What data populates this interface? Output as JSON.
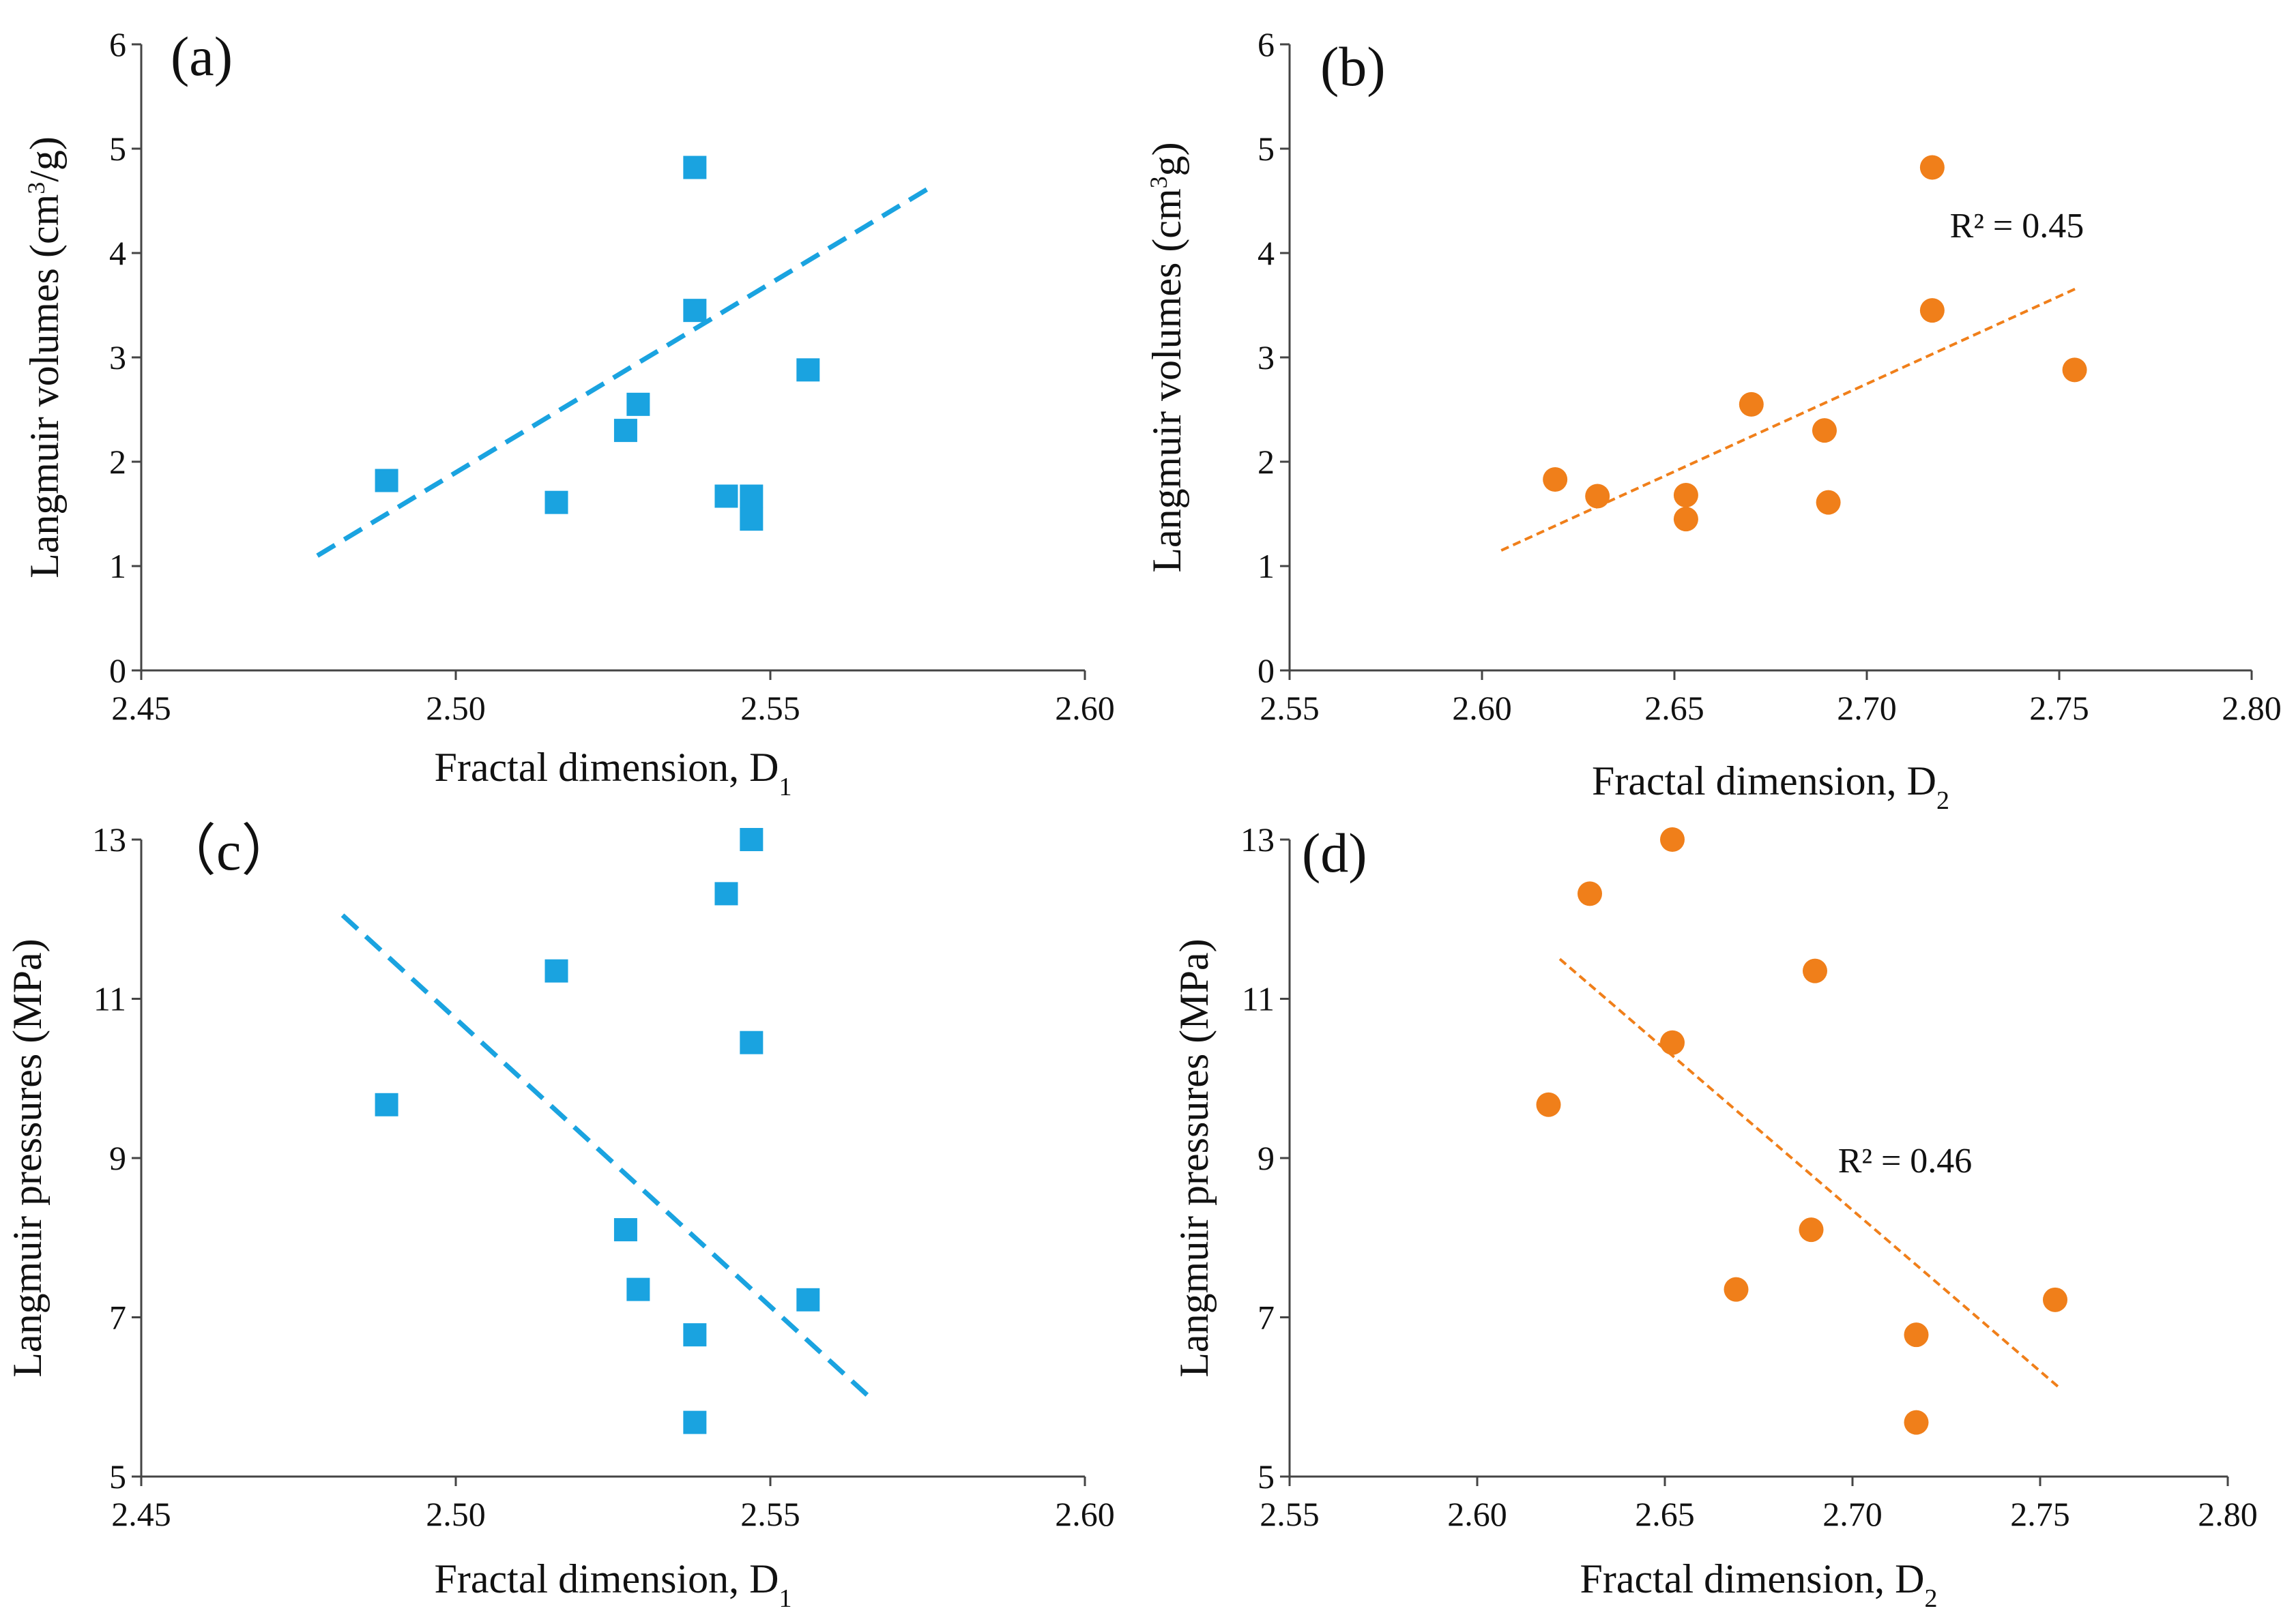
{
  "colors": {
    "blue": "#1aa3e0",
    "orange": "#f07f1a",
    "axis": "#444444",
    "text": "#111111"
  },
  "chart_data": [
    {
      "id": "a",
      "type": "scatter",
      "panel_label": "(a)",
      "xlabel": "Fractal dimension, D",
      "xlabel_sub": "1",
      "ylabel_pre": "Langmuir volumes (cm",
      "ylabel_sup": "3",
      "ylabel_post": "/g)",
      "xlim": [
        2.45,
        2.6
      ],
      "ylim": [
        0,
        6
      ],
      "xticks": [
        "2.45",
        "2.50",
        "2.55",
        "2.60"
      ],
      "yticks": [
        "0",
        "1",
        "2",
        "3",
        "4",
        "5",
        "6"
      ],
      "marker": "square",
      "color": "blue",
      "trend_style": "dashed-thick",
      "trendline": {
        "x": [
          2.478,
          2.576
        ],
        "y": [
          1.1,
          4.65
        ]
      },
      "r2_label": "",
      "points": [
        {
          "x": 2.489,
          "y": 1.82
        },
        {
          "x": 2.516,
          "y": 1.61
        },
        {
          "x": 2.527,
          "y": 2.3
        },
        {
          "x": 2.529,
          "y": 2.55
        },
        {
          "x": 2.538,
          "y": 4.82
        },
        {
          "x": 2.538,
          "y": 3.45
        },
        {
          "x": 2.543,
          "y": 1.67
        },
        {
          "x": 2.547,
          "y": 1.67
        },
        {
          "x": 2.547,
          "y": 1.45
        },
        {
          "x": 2.556,
          "y": 2.88
        }
      ]
    },
    {
      "id": "b",
      "type": "scatter",
      "panel_label": "(b)",
      "xlabel": "Fractal dimension, D",
      "xlabel_sub": "2",
      "ylabel_pre": "Langmuir volumes (cm",
      "ylabel_sup": "3",
      "ylabel_post": "g)",
      "xlim": [
        2.55,
        2.8
      ],
      "ylim": [
        0,
        6
      ],
      "xticks": [
        "2.55",
        "2.60",
        "2.65",
        "2.70",
        "2.75",
        "2.80"
      ],
      "yticks": [
        "0",
        "1",
        "2",
        "3",
        "4",
        "5",
        "6"
      ],
      "marker": "circle",
      "color": "orange",
      "trend_style": "dashed-thin",
      "trendline": {
        "x": [
          2.605,
          2.755
        ],
        "y": [
          1.15,
          3.67
        ]
      },
      "r2_label": "R² = 0.45",
      "r2_pos": {
        "x": 2.739,
        "y": 4.15
      },
      "points": [
        {
          "x": 2.619,
          "y": 1.83
        },
        {
          "x": 2.63,
          "y": 1.67
        },
        {
          "x": 2.653,
          "y": 1.68
        },
        {
          "x": 2.653,
          "y": 1.45
        },
        {
          "x": 2.67,
          "y": 2.55
        },
        {
          "x": 2.689,
          "y": 2.3
        },
        {
          "x": 2.69,
          "y": 1.61
        },
        {
          "x": 2.717,
          "y": 4.82
        },
        {
          "x": 2.717,
          "y": 3.45
        },
        {
          "x": 2.754,
          "y": 2.88
        }
      ]
    },
    {
      "id": "c",
      "type": "scatter",
      "panel_label": "（c）",
      "xlabel": "Fractal dimension, D",
      "xlabel_sub": "1",
      "ylabel_pre": "Langmuir pressures (MPa)",
      "ylabel_sup": "",
      "ylabel_post": "",
      "xlim": [
        2.45,
        2.6
      ],
      "ylim": [
        5,
        13
      ],
      "xticks": [
        "2.45",
        "2.50",
        "2.55",
        "2.60"
      ],
      "yticks": [
        "5",
        "7",
        "9",
        "11",
        "13"
      ],
      "marker": "square",
      "color": "blue",
      "trend_style": "dashed-thick",
      "trendline": {
        "x": [
          2.482,
          2.566
        ],
        "y": [
          12.05,
          5.98
        ]
      },
      "r2_label": "",
      "points": [
        {
          "x": 2.489,
          "y": 9.67
        },
        {
          "x": 2.516,
          "y": 11.35
        },
        {
          "x": 2.527,
          "y": 8.1
        },
        {
          "x": 2.529,
          "y": 7.35
        },
        {
          "x": 2.538,
          "y": 6.78
        },
        {
          "x": 2.538,
          "y": 5.68
        },
        {
          "x": 2.543,
          "y": 12.32
        },
        {
          "x": 2.547,
          "y": 13.0
        },
        {
          "x": 2.547,
          "y": 10.45
        },
        {
          "x": 2.556,
          "y": 7.22
        }
      ]
    },
    {
      "id": "d",
      "type": "scatter",
      "panel_label": "(d)",
      "xlabel": "Fractal dimension, D",
      "xlabel_sub": "2",
      "ylabel_pre": "Langmuir pressures (MPa)",
      "ylabel_sup": "",
      "ylabel_post": "",
      "xlim": [
        2.55,
        2.8
      ],
      "ylim": [
        5,
        13
      ],
      "xticks": [
        "2.55",
        "2.60",
        "2.65",
        "2.70",
        "2.75",
        "2.80"
      ],
      "yticks": [
        "5",
        "7",
        "9",
        "11",
        "13"
      ],
      "marker": "circle",
      "color": "orange",
      "trend_style": "dashed-thin",
      "trendline": {
        "x": [
          2.622,
          2.755
        ],
        "y": [
          11.5,
          6.12
        ]
      },
      "r2_label": "R² = 0.46",
      "r2_pos": {
        "x": 2.714,
        "y": 8.82
      },
      "points": [
        {
          "x": 2.619,
          "y": 9.67
        },
        {
          "x": 2.63,
          "y": 12.32
        },
        {
          "x": 2.652,
          "y": 13.0
        },
        {
          "x": 2.652,
          "y": 10.45
        },
        {
          "x": 2.669,
          "y": 7.35
        },
        {
          "x": 2.689,
          "y": 8.1
        },
        {
          "x": 2.69,
          "y": 11.35
        },
        {
          "x": 2.717,
          "y": 6.78
        },
        {
          "x": 2.717,
          "y": 5.68
        },
        {
          "x": 2.754,
          "y": 7.22
        }
      ]
    }
  ]
}
